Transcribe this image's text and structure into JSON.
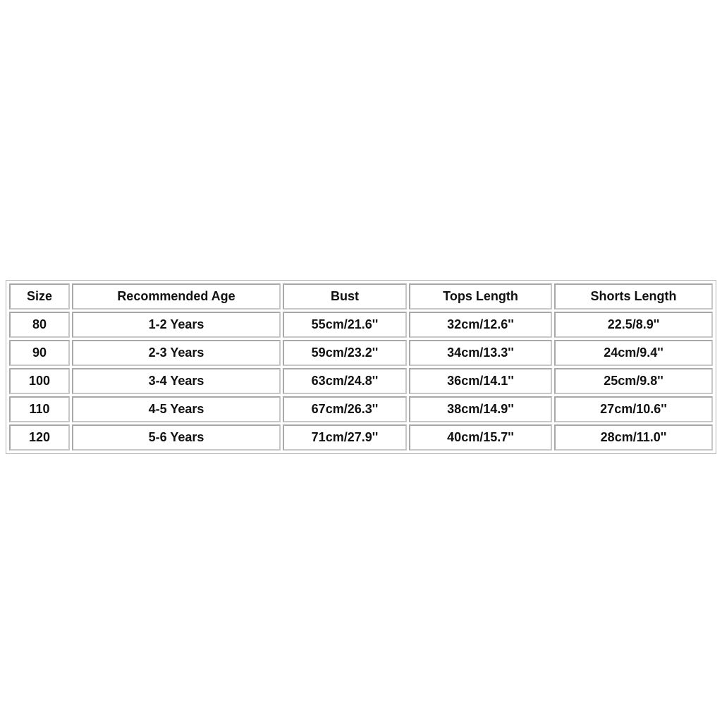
{
  "table": {
    "headers": [
      "Size",
      "Recommended Age",
      "Bust",
      "Tops Length",
      "Shorts Length"
    ],
    "rows": [
      [
        "80",
        "1-2 Years",
        "55cm/21.6''",
        "32cm/12.6''",
        "22.5/8.9''"
      ],
      [
        "90",
        "2-3 Years",
        "59cm/23.2''",
        "34cm/13.3''",
        "24cm/9.4''"
      ],
      [
        "100",
        "3-4 Years",
        "63cm/24.8''",
        "36cm/14.1''",
        "25cm/9.8''"
      ],
      [
        "110",
        "4-5 Years",
        "67cm/26.3''",
        "38cm/14.9''",
        "27cm/10.6''"
      ],
      [
        "120",
        "5-6 Years",
        "71cm/27.9''",
        "40cm/15.7''",
        "28cm/11.0''"
      ]
    ]
  }
}
